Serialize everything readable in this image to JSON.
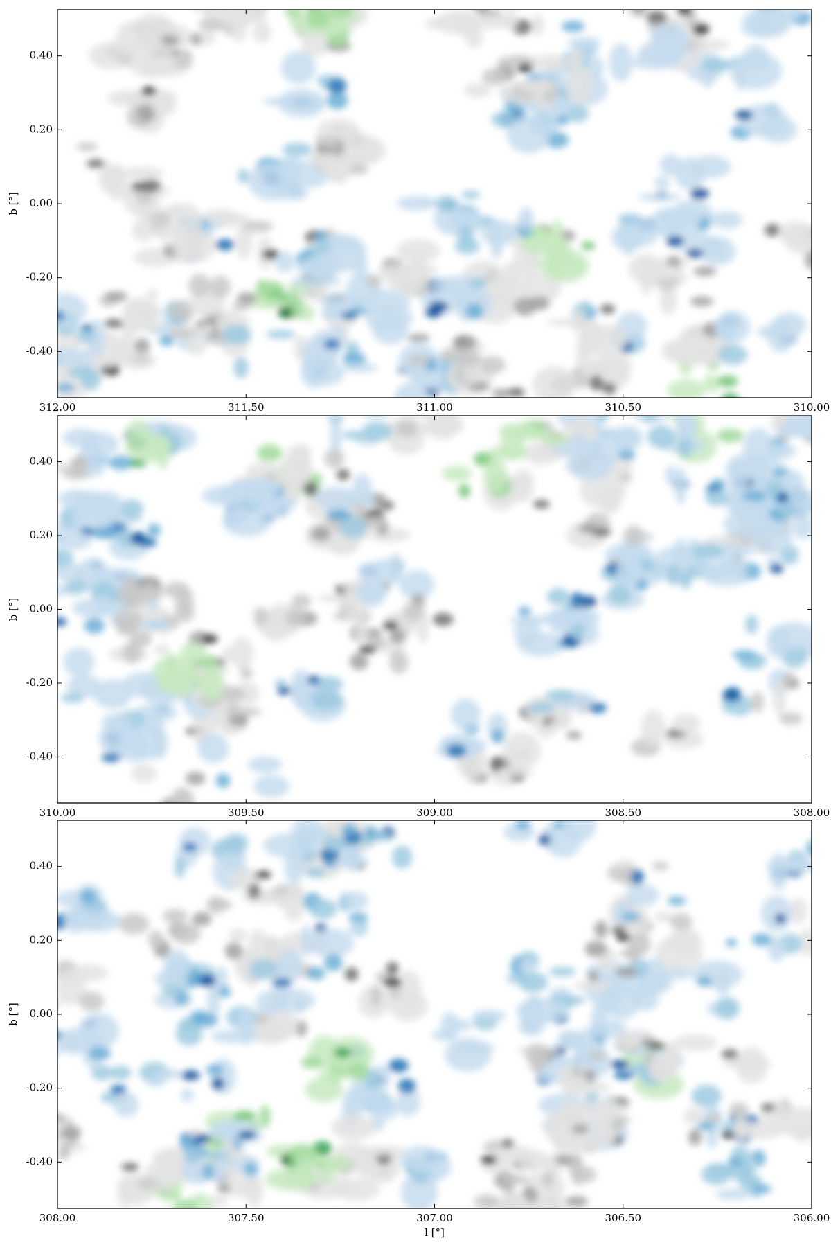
{
  "chart_data": [
    {
      "type": "image",
      "xlim": [
        312.0,
        310.0
      ],
      "ylim": [
        -0.525,
        0.525
      ],
      "xticks": [
        {
          "value": 312,
          "label": "312.00"
        },
        {
          "value": 311.5,
          "label": "311.50"
        },
        {
          "value": 311,
          "label": "311.00"
        },
        {
          "value": 310.5,
          "label": "310.50"
        },
        {
          "value": 310,
          "label": "310.00"
        }
      ],
      "yticks": [
        {
          "value": 0.4,
          "label": "0.40"
        },
        {
          "value": 0.2,
          "label": "0.20"
        },
        {
          "value": 0,
          "label": "0.00"
        },
        {
          "value": -0.2,
          "label": "-0.20"
        },
        {
          "value": -0.4,
          "label": "-0.40"
        }
      ],
      "ylabel": "b [°]"
    },
    {
      "type": "image",
      "xlim": [
        310.0,
        308.0
      ],
      "ylim": [
        -0.525,
        0.525
      ],
      "xticks": [
        {
          "value": 310,
          "label": "310.00"
        },
        {
          "value": 309.5,
          "label": "309.50"
        },
        {
          "value": 309,
          "label": "309.00"
        },
        {
          "value": 308.5,
          "label": "308.50"
        },
        {
          "value": 308,
          "label": "308.00"
        }
      ],
      "yticks": [
        {
          "value": 0.4,
          "label": "0.40"
        },
        {
          "value": 0.2,
          "label": "0.20"
        },
        {
          "value": 0,
          "label": "0.00"
        },
        {
          "value": -0.2,
          "label": "-0.20"
        },
        {
          "value": -0.4,
          "label": "-0.40"
        }
      ],
      "ylabel": "b [°]"
    },
    {
      "type": "image",
      "xlim": [
        308.0,
        306.0
      ],
      "ylim": [
        -0.525,
        0.525
      ],
      "xticks": [
        {
          "value": 308,
          "label": "308.00"
        },
        {
          "value": 307.5,
          "label": "307.50"
        },
        {
          "value": 307,
          "label": "307.00"
        },
        {
          "value": 306.5,
          "label": "306.50"
        },
        {
          "value": 306,
          "label": "306.00"
        }
      ],
      "yticks": [
        {
          "value": 0.4,
          "label": "0.40"
        },
        {
          "value": 0.2,
          "label": "0.20"
        },
        {
          "value": 0,
          "label": "0.00"
        },
        {
          "value": -0.2,
          "label": "-0.20"
        },
        {
          "value": -0.4,
          "label": "-0.40"
        }
      ],
      "ylabel": "b [°]",
      "xlabel": "l [°]"
    }
  ]
}
